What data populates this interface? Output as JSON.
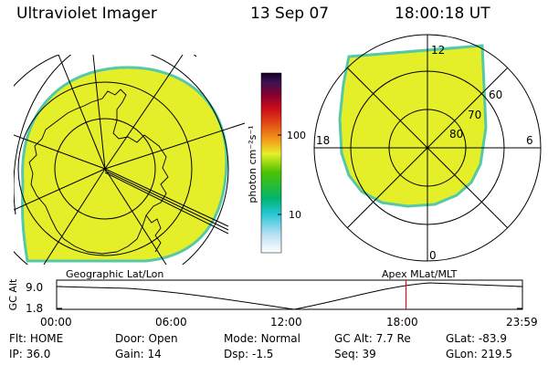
{
  "header": {
    "title": "Ultraviolet Imager",
    "date": "13 Sep 07",
    "time": "18:00:18 UT"
  },
  "colorbar": {
    "ticks": [
      "100",
      "10"
    ],
    "unit_label": "photon cm⁻²s⁻¹"
  },
  "left_panel": {
    "caption": "Geographic Lat/Lon"
  },
  "right_panel": {
    "caption": "Apex  MLat/MLT",
    "mlt_labels": [
      "12",
      "18",
      "6",
      "0"
    ],
    "lat_labels": [
      "60",
      "70",
      "80"
    ]
  },
  "timeline": {
    "ylabel": "GC Alt",
    "y_ticks": [
      "9.0",
      "1.8"
    ],
    "x_ticks": [
      "00:00",
      "06:00",
      "12:00",
      "18:00",
      "23:59"
    ],
    "current_time_fraction": 0.75
  },
  "info": {
    "row1": [
      {
        "label": "Flt:",
        "value": "HOME"
      },
      {
        "label": "Door:",
        "value": "Open"
      },
      {
        "label": "Mode:",
        "value": "Normal"
      },
      {
        "label": "GC Alt:",
        "value": "7.7 Re"
      },
      {
        "label": "GLat:",
        "value": "-83.9"
      }
    ],
    "row2": [
      {
        "label": "IP:",
        "value": "36.0"
      },
      {
        "label": "Gain:",
        "value": "14"
      },
      {
        "label": "Dsp:",
        "value": "-1.5"
      },
      {
        "label": "Seq:",
        "value": "39"
      },
      {
        "label": "GLon:",
        "value": "219.5"
      }
    ]
  },
  "colors": {
    "image_fill": "#e4ef2a",
    "image_edge": "#55c8a8",
    "marker": "#e01010"
  }
}
